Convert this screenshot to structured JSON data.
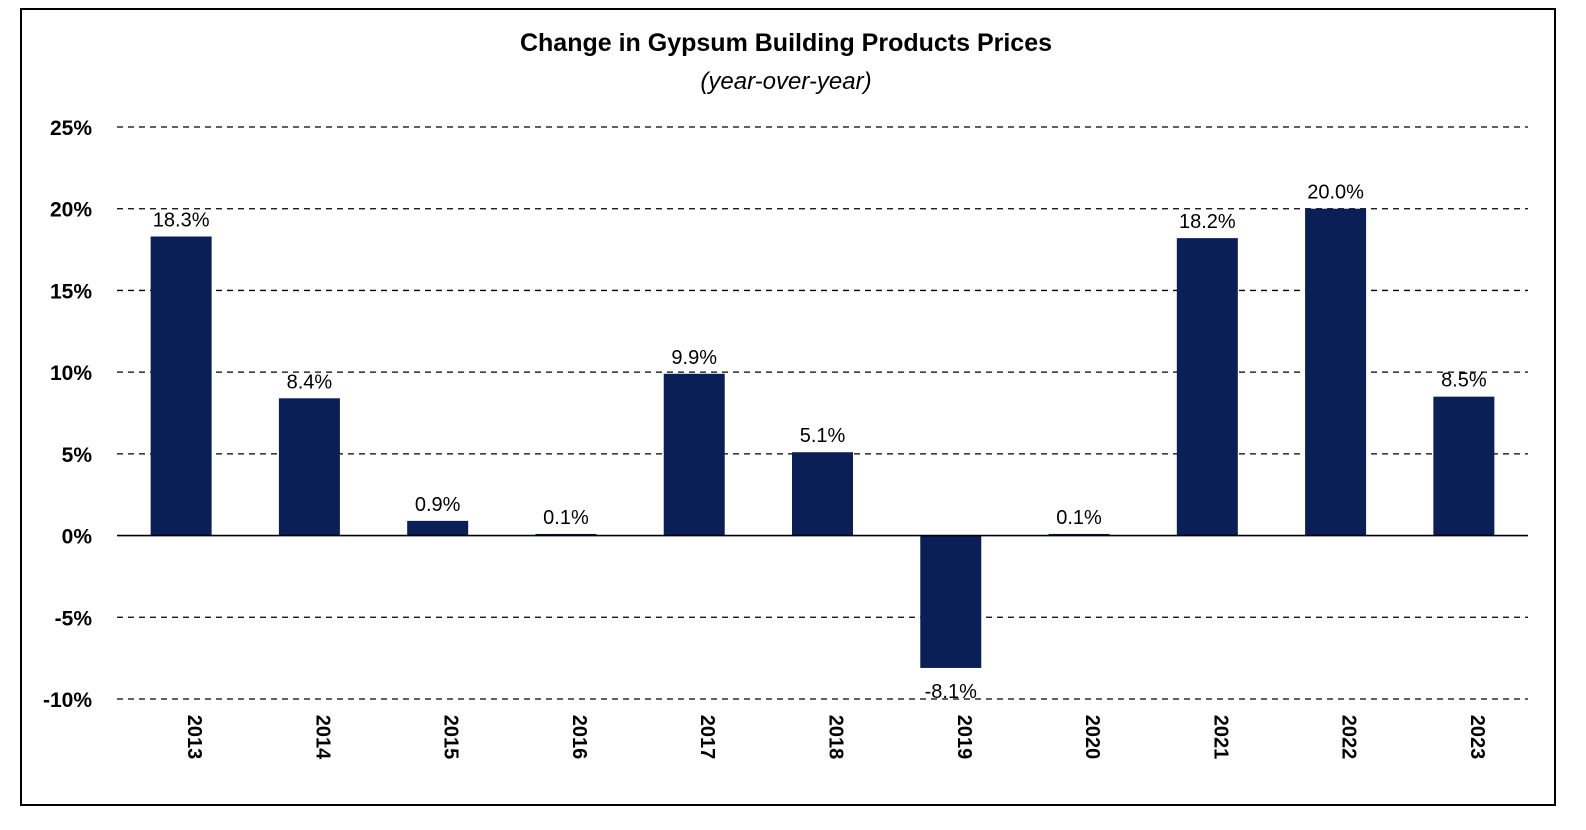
{
  "chart_data": {
    "type": "bar",
    "title": "Change in Gypsum Building Products Prices",
    "subtitle": "(year-over-year)",
    "categories": [
      "2013",
      "2014",
      "2015",
      "2016",
      "2017",
      "2018",
      "2019",
      "2020",
      "2021",
      "2022",
      "2023"
    ],
    "values": [
      18.3,
      8.4,
      0.9,
      0.1,
      9.9,
      5.1,
      -8.1,
      0.1,
      18.2,
      20.0,
      8.5
    ],
    "value_labels": [
      "18.3%",
      "8.4%",
      "0.9%",
      "0.1%",
      "9.9%",
      "5.1%",
      "-8.1%",
      "0.1%",
      "18.2%",
      "20.0%",
      "8.5%"
    ],
    "yticks": [
      25,
      20,
      15,
      10,
      5,
      0,
      -5,
      -10
    ],
    "ytick_labels": [
      "25%",
      "20%",
      "15%",
      "10%",
      "5%",
      "0%",
      "-5%",
      "-10%"
    ],
    "ylim": [
      -10,
      25
    ],
    "xlabel": "",
    "ylabel": "",
    "grid": "horizontal dashed",
    "legend": "none",
    "bar_color": "#0b1f57",
    "text_color": "#000000"
  }
}
